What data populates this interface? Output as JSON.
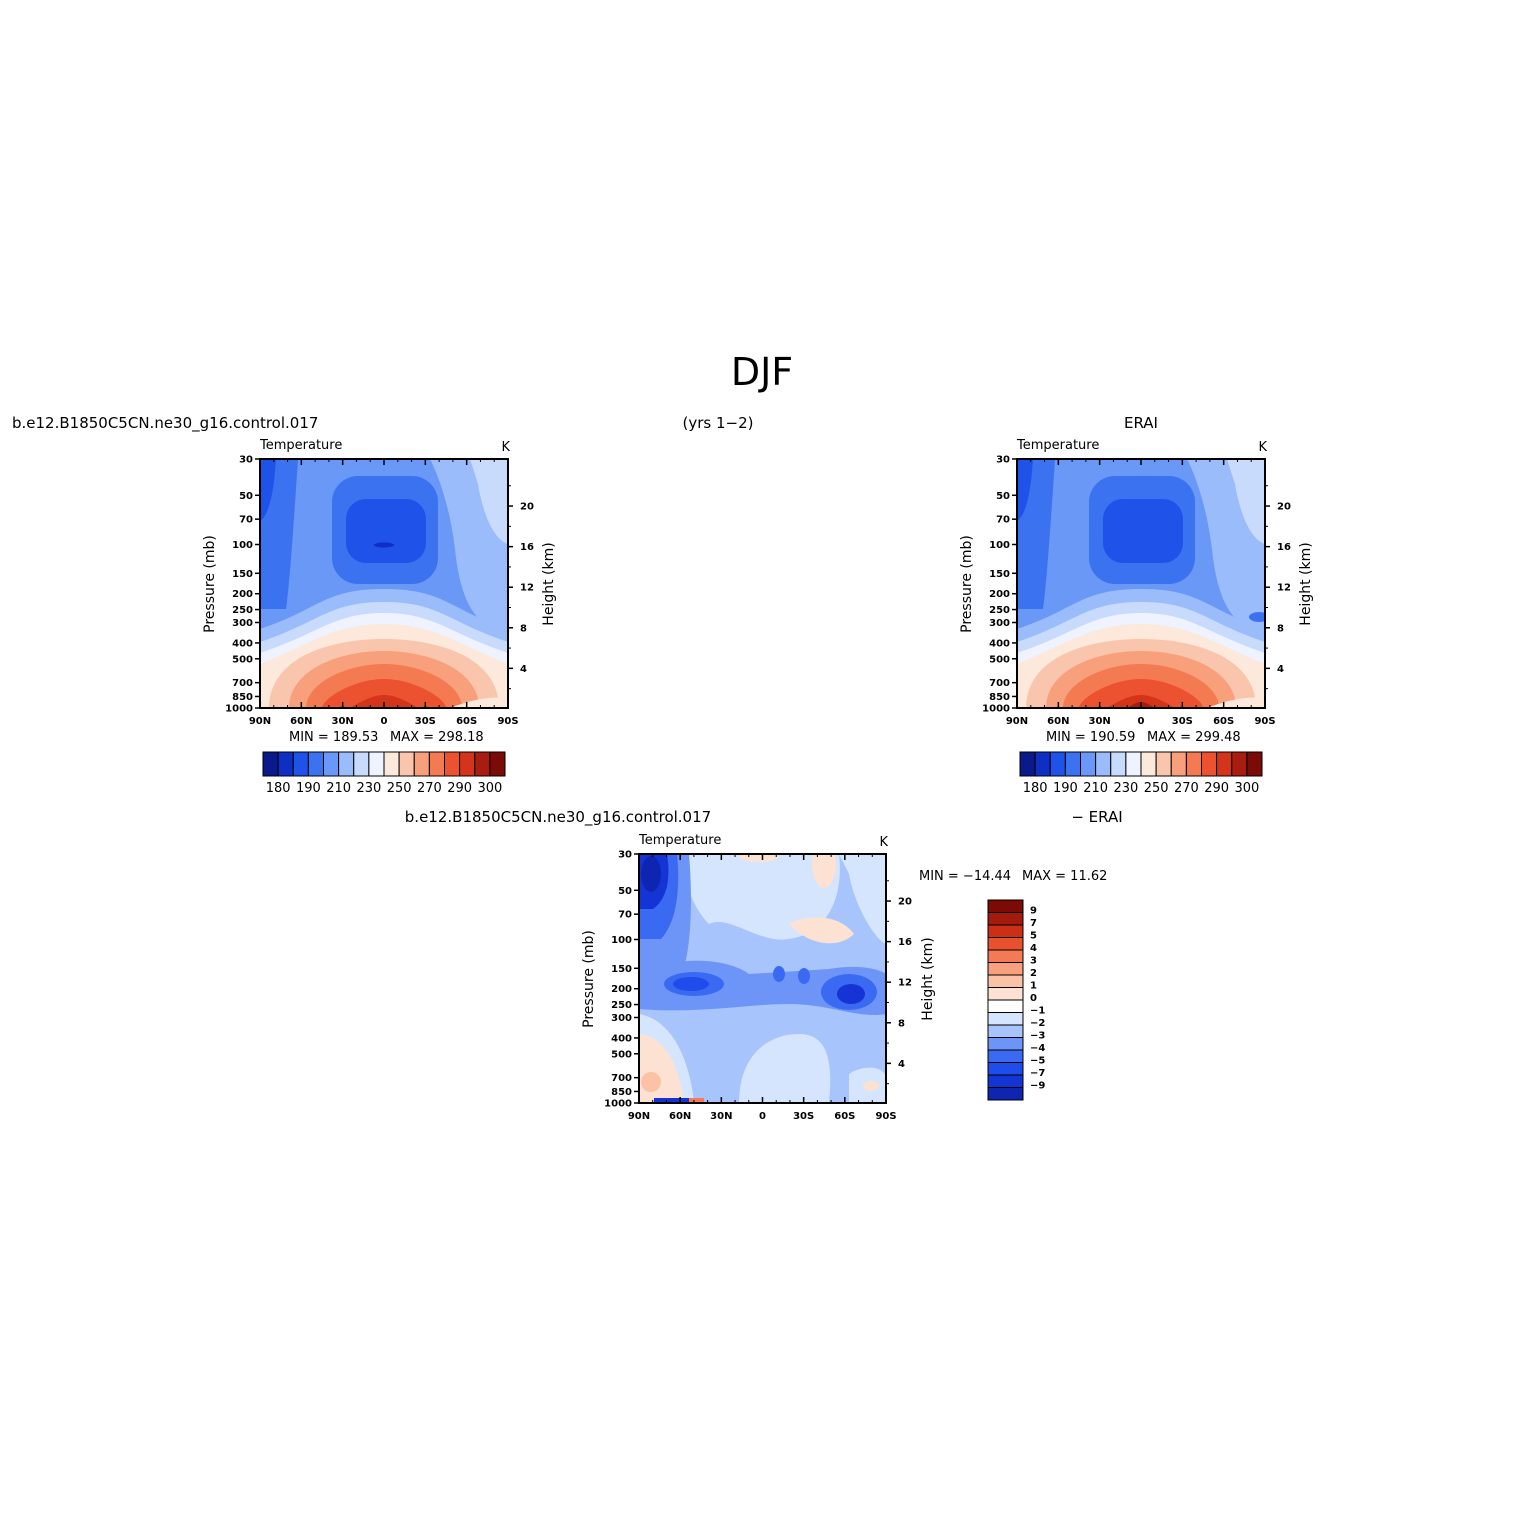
{
  "figure": {
    "title": "DJF",
    "subtitle": "(yrs 1−2)"
  },
  "colors": {
    "abs_palette": [
      "#0b1a8a",
      "#0f2fc4",
      "#1f52e8",
      "#3a72f0",
      "#6a98f7",
      "#9bbcfb",
      "#c8dbfd",
      "#eef3ff",
      "#fde8dc",
      "#f9c6ad",
      "#f8a07c",
      "#f47a52",
      "#ec522f",
      "#d4351a",
      "#a91d10",
      "#7a0b06"
    ],
    "anom_palette": [
      "#0a1888",
      "#0d25b0",
      "#1434d6",
      "#1f4cea",
      "#3a6af2",
      "#6d95f8",
      "#a8c4fc",
      "#d6e5fe",
      "#ffffff",
      "#fde1d3",
      "#fbc2a6",
      "#f8a07e",
      "#f37a54",
      "#e7512e",
      "#cc2f16",
      "#a41a0c",
      "#7c0a05"
    ]
  },
  "chart_data": [
    {
      "type": "heatmap",
      "id": "model",
      "left_title": "b.e12.B1850C5CN.ne30_g16.control.017",
      "center_title": "(yrs 1−2)",
      "field_label": "Temperature",
      "units": "K",
      "ylabel": "Pressure (mb)",
      "ylabel_right": "Height (km)",
      "x_ticks": [
        "90N",
        "60N",
        "30N",
        "0",
        "30S",
        "60S",
        "90S"
      ],
      "pressure_ticks": [
        "30",
        "50",
        "70",
        "100",
        "150",
        "200",
        "250",
        "300",
        "400",
        "500",
        "700",
        "850",
        "1000"
      ],
      "height_ticks": [
        "4",
        "8",
        "12",
        "16",
        "20"
      ],
      "min_text": "MIN = 189.53",
      "max_text": "MAX = 298.18",
      "min": 189.53,
      "max": 298.18,
      "colorbar_labels": [
        "180",
        "190",
        "210",
        "230",
        "250",
        "270",
        "290",
        "300"
      ]
    },
    {
      "type": "heatmap",
      "id": "obs",
      "center_title": "ERAI",
      "field_label": "Temperature",
      "units": "K",
      "ylabel": "Pressure (mb)",
      "ylabel_right": "Height (km)",
      "x_ticks": [
        "90N",
        "60N",
        "30N",
        "0",
        "30S",
        "60S",
        "90S"
      ],
      "pressure_ticks": [
        "30",
        "50",
        "70",
        "100",
        "150",
        "200",
        "250",
        "300",
        "400",
        "500",
        "700",
        "850",
        "1000"
      ],
      "height_ticks": [
        "4",
        "8",
        "12",
        "16",
        "20"
      ],
      "min_text": "MIN = 190.59",
      "max_text": "MAX = 299.48",
      "min": 190.59,
      "max": 299.48,
      "colorbar_labels": [
        "180",
        "190",
        "210",
        "230",
        "250",
        "270",
        "290",
        "300"
      ]
    },
    {
      "type": "heatmap",
      "id": "diff",
      "left_title": "b.e12.B1850C5CN.ne30_g16.control.017",
      "center_title": "− ERAI",
      "field_label": "Temperature",
      "units": "K",
      "ylabel": "Pressure (mb)",
      "ylabel_right": "Height (km)",
      "x_ticks": [
        "90N",
        "60N",
        "30N",
        "0",
        "30S",
        "60S",
        "90S"
      ],
      "pressure_ticks": [
        "30",
        "50",
        "70",
        "100",
        "150",
        "200",
        "250",
        "300",
        "400",
        "500",
        "700",
        "850",
        "1000"
      ],
      "height_ticks": [
        "4",
        "8",
        "12",
        "16",
        "20"
      ],
      "min_text": "MIN = −14.44",
      "max_text": "MAX = 11.62",
      "min": -14.44,
      "max": 11.62,
      "colorbar_labels": [
        "9",
        "7",
        "5",
        "4",
        "3",
        "2",
        "1",
        "0",
        "−1",
        "−2",
        "−3",
        "−4",
        "−5",
        "−7",
        "−9"
      ]
    }
  ]
}
